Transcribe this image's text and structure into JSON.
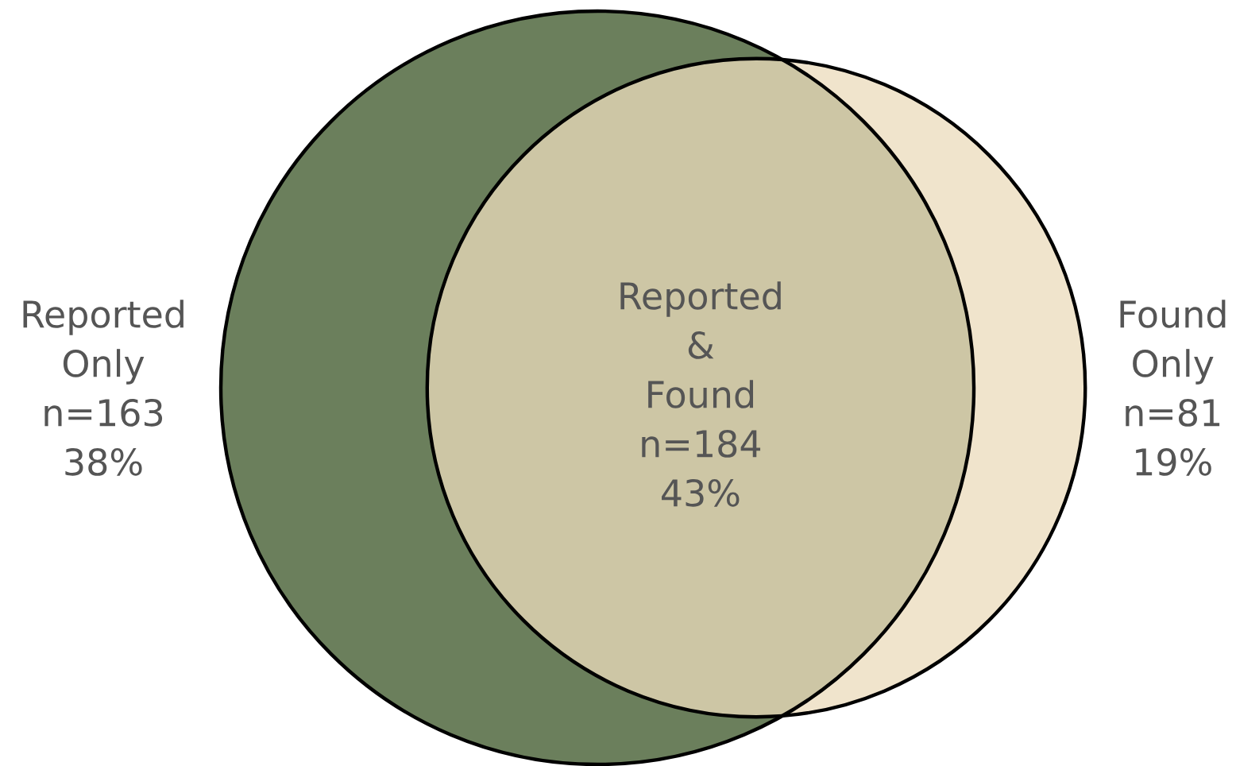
{
  "chart_data": {
    "type": "other",
    "categories": [
      "Reported Only",
      "Reported & Found",
      "Found Only"
    ],
    "values": [
      163,
      184,
      81
    ],
    "value_labels": [
      "n=163",
      "n=184",
      "n=81"
    ],
    "annotations": [
      "38%",
      "43%",
      "19%"
    ],
    "colors": [
      "#6b7f5c",
      "#cdc6a5",
      "#f0e4cc"
    ]
  }
}
